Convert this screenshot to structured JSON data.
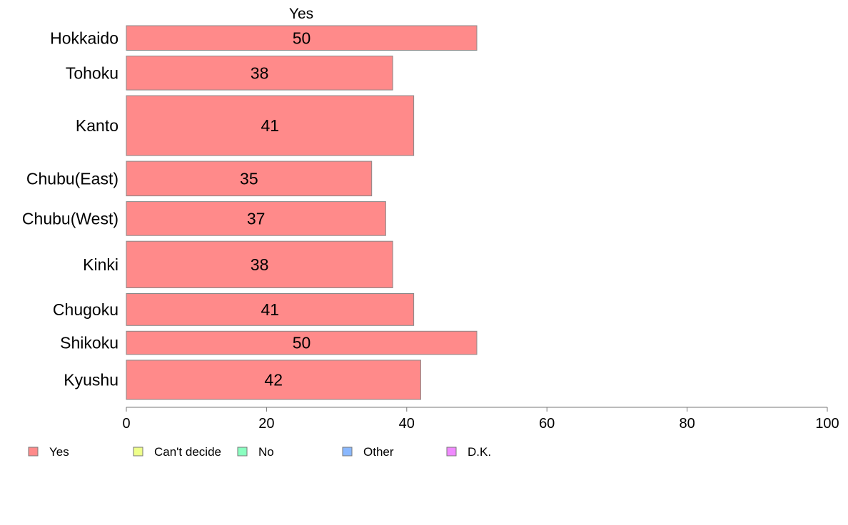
{
  "chart_data": {
    "type": "bar",
    "orientation": "horizontal",
    "panel_title": "Yes",
    "categories": [
      "Hokkaido",
      "Tohoku",
      "Kanto",
      "Chubu(East)",
      "Chubu(West)",
      "Kinki",
      "Chugoku",
      "Shikoku",
      "Kyushu"
    ],
    "category_weights": [
      37,
      51,
      90,
      52,
      51,
      70,
      48,
      35,
      59
    ],
    "series": [
      {
        "name": "Yes",
        "color": "#ff8a8a",
        "values": [
          50,
          38,
          41,
          35,
          37,
          38,
          41,
          50,
          42
        ],
        "labels": [
          "50",
          "38",
          "41",
          "35",
          "37",
          "38",
          "41",
          "50",
          "42"
        ]
      }
    ],
    "xlim": [
      0,
      100
    ],
    "xticks": [
      0,
      20,
      40,
      60,
      80,
      100
    ],
    "xtick_labels": [
      "0",
      "20",
      "40",
      "60",
      "80",
      "100"
    ],
    "grid": false,
    "legend_position": "bottom",
    "legend": [
      {
        "name": "Yes",
        "color": "#ff8a8a"
      },
      {
        "name": "Can't decide",
        "color": "#eeff8a"
      },
      {
        "name": "No",
        "color": "#8affc0"
      },
      {
        "name": "Other",
        "color": "#8ab8ff"
      },
      {
        "name": "D.K.",
        "color": "#f08aff"
      }
    ]
  }
}
